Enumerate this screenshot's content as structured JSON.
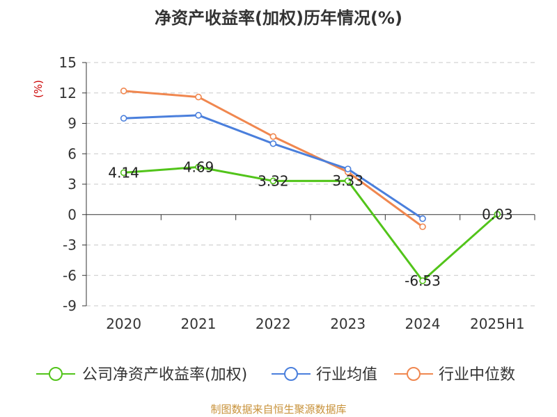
{
  "chart_data": {
    "type": "line",
    "title": "净资产收益率(加权)历年情况(%)",
    "ylabel": "(%)",
    "xlabel": "",
    "categories": [
      "2020",
      "2021",
      "2022",
      "2023",
      "2024",
      "2025H1"
    ],
    "ylim": [
      -9,
      15
    ],
    "yticks": [
      15,
      12,
      9,
      6,
      3,
      0,
      -3,
      -6,
      -9
    ],
    "grid": true,
    "legend_position": "bottom",
    "series": [
      {
        "name": "公司净资产收益率(加权)",
        "color": "#52c41a",
        "values": [
          4.14,
          4.69,
          3.32,
          3.33,
          -6.53,
          0.03
        ],
        "labels": [
          "4.14",
          "4.69",
          "3.32",
          "3.33",
          "-6.53",
          "0.03"
        ]
      },
      {
        "name": "行业均值",
        "color": "#4a7fdc",
        "values": [
          9.5,
          9.8,
          7.0,
          4.5,
          -0.4,
          null
        ]
      },
      {
        "name": "行业中位数",
        "color": "#f0874f",
        "values": [
          12.2,
          11.6,
          7.7,
          4.2,
          -1.2,
          null
        ]
      }
    ]
  },
  "source_text": "制图数据来自恒生聚源数据库"
}
